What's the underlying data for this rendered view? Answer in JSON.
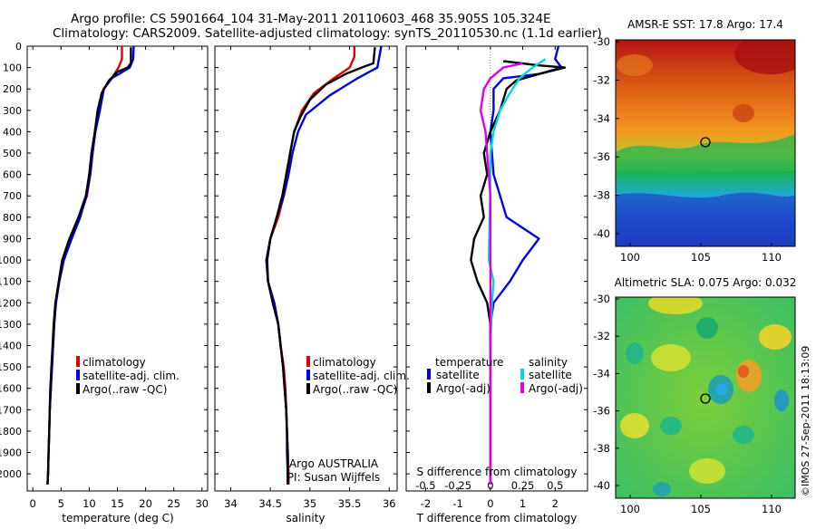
{
  "header": {
    "title_line1": "Argo profile: CS 5901664_104 31-May-2011 20110603_468 35.905S 105.324E",
    "title_line2": "Climatology: CARS2009. Satellite-adjusted climatology: synTS_20110530.nc (1.1d earlier)"
  },
  "depth_ticks": [
    0,
    100,
    200,
    300,
    400,
    500,
    600,
    700,
    800,
    900,
    1000,
    1100,
    1200,
    1300,
    1400,
    1500,
    1600,
    1700,
    1800,
    1900,
    2000
  ],
  "colors": {
    "climatology": "#e00000",
    "satellite": "#0000e6",
    "argo": "#000000",
    "salinity_sat": "#00d8d8",
    "salinity_argo": "#e000e0"
  },
  "chart_data": [
    {
      "type": "line",
      "panel": "temperature",
      "xlabel": "temperature (deg C)",
      "xlim": [
        -1,
        31
      ],
      "ylim": [
        2080,
        0
      ],
      "xticks": [
        0,
        5,
        10,
        15,
        20,
        25,
        30
      ],
      "legend": {
        "items": [
          "climatology",
          "satellite-adj. clim.",
          "Argo(..raw -QC)"
        ],
        "placement": "bottom-right"
      },
      "series": [
        {
          "name": "climatology",
          "color": "#e00000",
          "points": [
            [
              15.8,
              0
            ],
            [
              15.8,
              60
            ],
            [
              15.2,
              100
            ],
            [
              14.0,
              150
            ],
            [
              12.5,
              200
            ],
            [
              11.8,
              300
            ],
            [
              11.0,
              400
            ],
            [
              10.6,
              500
            ],
            [
              10.2,
              600
            ],
            [
              9.6,
              700
            ],
            [
              8.3,
              800
            ],
            [
              6.8,
              900
            ],
            [
              5.5,
              1000
            ],
            [
              4.7,
              1100
            ],
            [
              4.1,
              1200
            ],
            [
              3.8,
              1300
            ],
            [
              3.6,
              1400
            ],
            [
              3.4,
              1500
            ],
            [
              3.2,
              1600
            ],
            [
              3.0,
              1700
            ],
            [
              2.9,
              1800
            ],
            [
              2.8,
              1900
            ],
            [
              2.7,
              2000
            ],
            [
              2.6,
              2050
            ]
          ]
        },
        {
          "name": "satellite-adj. clim.",
          "color": "#0000e6",
          "points": [
            [
              17.9,
              0
            ],
            [
              17.8,
              60
            ],
            [
              17.2,
              100
            ],
            [
              14.0,
              150
            ],
            [
              12.6,
              200
            ],
            [
              11.9,
              300
            ],
            [
              11.1,
              400
            ],
            [
              10.6,
              500
            ],
            [
              10.2,
              600
            ],
            [
              9.5,
              700
            ],
            [
              8.4,
              800
            ],
            [
              6.9,
              900
            ],
            [
              5.5,
              1000
            ],
            [
              4.7,
              1100
            ],
            [
              4.1,
              1200
            ],
            [
              3.8,
              1300
            ],
            [
              3.6,
              1400
            ],
            [
              3.4,
              1500
            ],
            [
              3.2,
              1600
            ],
            [
              3.0,
              1700
            ],
            [
              2.9,
              1800
            ],
            [
              2.8,
              1900
            ],
            [
              2.7,
              2000
            ],
            [
              2.6,
              2050
            ]
          ]
        },
        {
          "name": "Argo(..raw -QC)",
          "color": "#000000",
          "points": [
            [
              17.4,
              5
            ],
            [
              17.4,
              80
            ],
            [
              16.8,
              100
            ],
            [
              15.0,
              120
            ],
            [
              13.5,
              160
            ],
            [
              12.2,
              220
            ],
            [
              11.5,
              300
            ],
            [
              11.0,
              400
            ],
            [
              10.4,
              500
            ],
            [
              10.0,
              600
            ],
            [
              9.4,
              700
            ],
            [
              8.1,
              800
            ],
            [
              6.5,
              900
            ],
            [
              5.2,
              1000
            ],
            [
              4.6,
              1100
            ],
            [
              4.0,
              1200
            ],
            [
              3.7,
              1300
            ],
            [
              3.5,
              1400
            ],
            [
              3.3,
              1500
            ],
            [
              3.1,
              1600
            ],
            [
              3.0,
              1700
            ],
            [
              2.9,
              1800
            ],
            [
              2.8,
              1900
            ],
            [
              2.7,
              2000
            ],
            [
              2.6,
              2050
            ]
          ]
        }
      ]
    },
    {
      "type": "line",
      "panel": "salinity",
      "xlabel": "salinity",
      "xlim": [
        33.8,
        36.1
      ],
      "ylim": [
        2080,
        0
      ],
      "xticks": [
        34,
        34.5,
        35,
        35.5,
        36
      ],
      "xticklabels": [
        "34",
        "34.5",
        "35",
        "35.5",
        "36"
      ],
      "legend": {
        "items": [
          "climatology",
          "satellite-adj. clim.",
          "Argo(..raw -QC)"
        ],
        "placement": "bottom-right"
      },
      "annotation": {
        "line1": "Argo AUSTRALIA",
        "line2": "PI: Susan Wijffels"
      },
      "series": [
        {
          "name": "climatology",
          "color": "#e00000",
          "points": [
            [
              35.56,
              0
            ],
            [
              35.56,
              50
            ],
            [
              35.5,
              100
            ],
            [
              35.3,
              150
            ],
            [
              35.05,
              220
            ],
            [
              34.9,
              300
            ],
            [
              34.8,
              400
            ],
            [
              34.75,
              500
            ],
            [
              34.72,
              600
            ],
            [
              34.67,
              700
            ],
            [
              34.6,
              800
            ],
            [
              34.5,
              900
            ],
            [
              34.45,
              1000
            ],
            [
              34.47,
              1100
            ],
            [
              34.55,
              1200
            ],
            [
              34.6,
              1300
            ],
            [
              34.63,
              1400
            ],
            [
              34.67,
              1500
            ],
            [
              34.69,
              1600
            ],
            [
              34.7,
              1700
            ],
            [
              34.71,
              1800
            ],
            [
              34.72,
              1900
            ],
            [
              34.73,
              2000
            ],
            [
              34.73,
              2050
            ]
          ]
        },
        {
          "name": "satellite-adj. clim.",
          "color": "#0000e6",
          "points": [
            [
              35.9,
              0
            ],
            [
              35.85,
              100
            ],
            [
              35.6,
              150
            ],
            [
              35.25,
              230
            ],
            [
              34.95,
              320
            ],
            [
              34.85,
              400
            ],
            [
              34.78,
              500
            ],
            [
              34.73,
              600
            ],
            [
              34.67,
              700
            ],
            [
              34.58,
              800
            ],
            [
              34.5,
              900
            ],
            [
              34.45,
              1000
            ],
            [
              34.47,
              1100
            ],
            [
              34.55,
              1200
            ],
            [
              34.6,
              1300
            ],
            [
              34.63,
              1400
            ],
            [
              34.66,
              1500
            ],
            [
              34.68,
              1600
            ],
            [
              34.7,
              1700
            ],
            [
              34.71,
              1800
            ],
            [
              34.71,
              1900
            ],
            [
              34.72,
              2000
            ],
            [
              34.72,
              2050
            ]
          ]
        },
        {
          "name": "Argo(..raw -QC)",
          "color": "#000000",
          "points": [
            [
              35.82,
              5
            ],
            [
              35.8,
              80
            ],
            [
              35.65,
              100
            ],
            [
              35.45,
              130
            ],
            [
              35.2,
              180
            ],
            [
              35.0,
              250
            ],
            [
              34.88,
              330
            ],
            [
              34.8,
              400
            ],
            [
              34.75,
              500
            ],
            [
              34.7,
              600
            ],
            [
              34.65,
              700
            ],
            [
              34.58,
              800
            ],
            [
              34.5,
              900
            ],
            [
              34.46,
              1000
            ],
            [
              34.47,
              1100
            ],
            [
              34.53,
              1200
            ],
            [
              34.6,
              1300
            ],
            [
              34.63,
              1400
            ],
            [
              34.66,
              1500
            ],
            [
              34.68,
              1600
            ],
            [
              34.7,
              1700
            ],
            [
              34.71,
              1800
            ],
            [
              34.72,
              1900
            ],
            [
              34.72,
              2000
            ],
            [
              34.72,
              2050
            ]
          ]
        }
      ]
    },
    {
      "type": "line",
      "panel": "differences",
      "xlabel": "T difference from climatology",
      "xlabel_top": "S difference from climatology",
      "xlim": [
        -2.6,
        3.0
      ],
      "ylim": [
        2080,
        0
      ],
      "xticks": [
        -2,
        -1,
        0,
        1,
        2
      ],
      "s_axis": {
        "xlim": [
          -0.65,
          0.75
        ],
        "ticks": [
          -0.5,
          -0.25,
          0,
          0.25,
          0.5
        ],
        "labels": [
          "-0.5",
          "-0.25",
          "0",
          "0.25",
          "0.5"
        ]
      },
      "legend": {
        "groups": [
          "temperature",
          "salinity"
        ],
        "items": [
          "satellite",
          "Argo(-adj)",
          "satellite",
          "Argo(-adj)"
        ],
        "placement": "bottom-right"
      },
      "series": [
        {
          "name": "satellite",
          "group": "temperature",
          "color": "#0000e6",
          "points": [
            [
              2.1,
              0
            ],
            [
              2.0,
              60
            ],
            [
              2.2,
              100
            ],
            [
              1.5,
              130
            ],
            [
              0.4,
              150
            ],
            [
              0.1,
              200
            ],
            [
              0.1,
              300
            ],
            [
              0.0,
              400
            ],
            [
              0.05,
              500
            ],
            [
              0.1,
              600
            ],
            [
              0.3,
              700
            ],
            [
              0.5,
              800
            ],
            [
              1.5,
              900
            ],
            [
              1.0,
              1000
            ],
            [
              0.6,
              1100
            ],
            [
              0.1,
              1200
            ],
            [
              0.0,
              1300
            ],
            [
              0.0,
              2050
            ]
          ]
        },
        {
          "name": "Argo(-adj)",
          "group": "temperature",
          "color": "#000000",
          "points": [
            [
              0.4,
              70
            ],
            [
              1.5,
              90
            ],
            [
              2.3,
              100
            ],
            [
              1.5,
              130
            ],
            [
              0.8,
              160
            ],
            [
              0.5,
              200
            ],
            [
              0.3,
              300
            ],
            [
              0.0,
              400
            ],
            [
              -0.2,
              500
            ],
            [
              -0.1,
              600
            ],
            [
              -0.3,
              700
            ],
            [
              -0.2,
              800
            ],
            [
              -0.5,
              900
            ],
            [
              -0.6,
              1000
            ],
            [
              -0.4,
              1100
            ],
            [
              -0.1,
              1200
            ],
            [
              0.0,
              1300
            ],
            [
              0.0,
              2050
            ]
          ]
        },
        {
          "name": "satellite",
          "group": "salinity",
          "color": "#00d8d8",
          "points": [
            [
              1.7,
              60
            ],
            [
              1.3,
              100
            ],
            [
              0.9,
              150
            ],
            [
              0.6,
              220
            ],
            [
              0.3,
              300
            ],
            [
              0.1,
              400
            ],
            [
              0.0,
              500
            ],
            [
              0.0,
              600
            ],
            [
              -0.02,
              800
            ],
            [
              -0.05,
              1000
            ],
            [
              0.1,
              1100
            ],
            [
              0.05,
              1200
            ],
            [
              0.0,
              1400
            ],
            [
              0.0,
              2050
            ]
          ]
        },
        {
          "name": "Argo(-adj)",
          "group": "salinity",
          "color": "#e000e0",
          "points": [
            [
              1.0,
              80
            ],
            [
              0.4,
              100
            ],
            [
              0.0,
              150
            ],
            [
              -0.2,
              200
            ],
            [
              -0.3,
              300
            ],
            [
              -0.15,
              400
            ],
            [
              -0.1,
              500
            ],
            [
              -0.05,
              600
            ],
            [
              0.0,
              700
            ],
            [
              0.0,
              1000
            ],
            [
              0.0,
              2050
            ]
          ]
        }
      ]
    }
  ],
  "maps": [
    {
      "title": "AMSR-E SST: 17.8 Argo: 17.4",
      "yticks": [
        "-30",
        "-32",
        "-34",
        "-36",
        "-38",
        "-40"
      ],
      "xticks": [
        "100",
        "105",
        "110"
      ]
    },
    {
      "title": "Altimetric SLA: 0.075 Argo: 0.032",
      "yticks": [
        "-30",
        "-32",
        "-34",
        "-36",
        "-38",
        "-40"
      ],
      "xticks": [
        "100",
        "105",
        "110"
      ]
    }
  ],
  "footer": {
    "stamp": "©IMOS 27-Sep-2011 18:13:09"
  }
}
